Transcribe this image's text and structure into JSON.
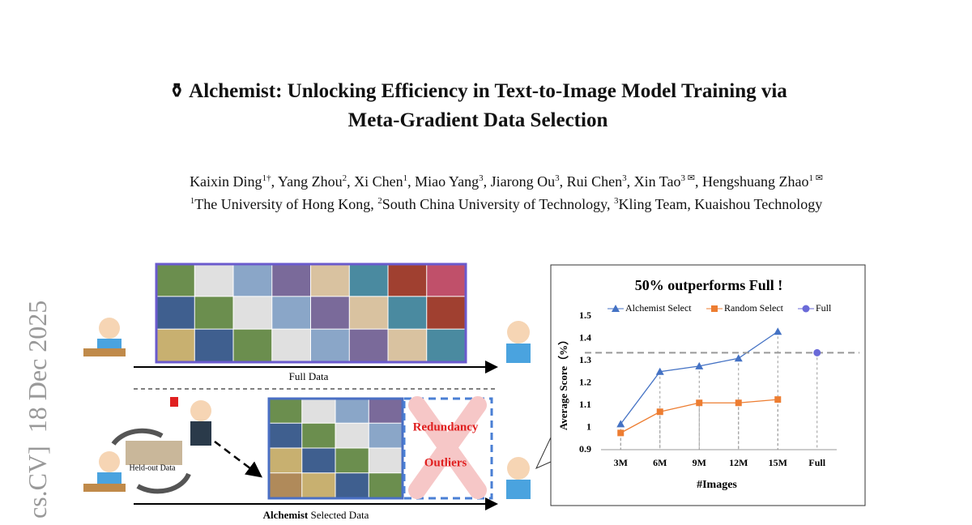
{
  "header": {
    "title_line1": "Alchemist: Unlocking Efficiency in Text-to-Image Model Training via",
    "title_line2": "Meta-Gradient Data Selection",
    "authors": [
      {
        "name": "Kaixin Ding",
        "sup": "1†"
      },
      {
        "name": "Yang Zhou",
        "sup": "2"
      },
      {
        "name": "Xi Chen",
        "sup": "1"
      },
      {
        "name": "Miao Yang",
        "sup": "3"
      },
      {
        "name": "Jiarong Ou",
        "sup": "3"
      },
      {
        "name": "Rui Chen",
        "sup": "3"
      },
      {
        "name": "Xin Tao",
        "sup": "3 ✉"
      },
      {
        "name": "Hengshuang Zhao",
        "sup": "1 ✉"
      }
    ],
    "affiliations": [
      {
        "sup": "1",
        "name": "The University of Hong Kong"
      },
      {
        "sup": "2",
        "name": "South China University of Technology"
      },
      {
        "sup": "3",
        "name": "Kling Team, Kuaishou Technology"
      }
    ]
  },
  "arxiv_stamp": "cs.CV]  18 Dec 2025",
  "figure": {
    "full_data_label": "Full Data",
    "held_out_label": "Held-out Data",
    "selected_label_bold": "Alchemist",
    "selected_label_rest": "Selected Data",
    "redundancy": "Redundancy",
    "outliers": "Outliers"
  },
  "chart_data": {
    "type": "line",
    "title": "50% outperforms Full !",
    "x_label": "#Images",
    "y_label": "Average Score（%）",
    "categories": [
      "3M",
      "6M",
      "9M",
      "12M",
      "15M",
      "Full"
    ],
    "series": [
      {
        "name": "Alchemist Select",
        "color": "#4472c4",
        "marker": "triangle",
        "values": [
          1.015,
          1.25,
          1.275,
          1.31,
          1.43,
          null
        ]
      },
      {
        "name": "Random Select",
        "color": "#ed7d31",
        "marker": "square",
        "values": [
          0.975,
          1.07,
          1.11,
          1.11,
          1.125,
          null
        ]
      },
      {
        "name": "Full",
        "color": "#6a6ad8",
        "marker": "circle",
        "values": [
          null,
          null,
          null,
          null,
          null,
          1.335
        ]
      }
    ],
    "ylim": [
      0.9,
      1.5
    ],
    "yticks": [
      0.9,
      1,
      1.1,
      1.2,
      1.3,
      1.4,
      1.5
    ],
    "legend": "top"
  }
}
